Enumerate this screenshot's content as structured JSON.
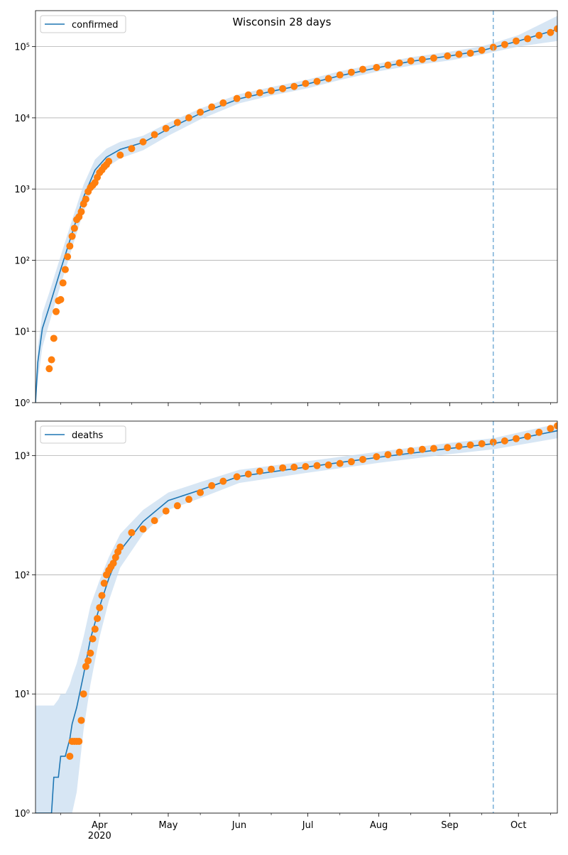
{
  "chart_data": [
    {
      "type": "line",
      "title": "Wisconsin 28 days",
      "log_y": true,
      "grid": "y",
      "legend": "upper left",
      "xlim": [
        "2020-03-04",
        "2020-10-18"
      ],
      "ylim": [
        1,
        320000
      ],
      "xticks": [
        "2020-04-01",
        "2020-05-01",
        "2020-06-01",
        "2020-07-01",
        "2020-08-01",
        "2020-09-01",
        "2020-10-01"
      ],
      "xminorticks": [
        "2020-03-15",
        "2020-04-15",
        "2020-05-15",
        "2020-06-15",
        "2020-07-15",
        "2020-08-15",
        "2020-09-15",
        "2020-10-15"
      ],
      "yticks": [
        {
          "value": 1,
          "label": "10⁰"
        },
        {
          "value": 10,
          "label": "10¹"
        },
        {
          "value": 100,
          "label": "10²"
        },
        {
          "value": 1000,
          "label": "10³"
        },
        {
          "value": 10000,
          "label": "10⁴"
        },
        {
          "value": 100000,
          "label": "10⁵"
        }
      ],
      "vline": "2020-09-20",
      "vline_color": "#7fb3d9",
      "series": [
        {
          "name": "confirmed",
          "color": "#1f77b4",
          "band_color": "#c6dbef",
          "x": [
            "2020-03-04",
            "2020-03-05",
            "2020-03-07",
            "2020-03-10",
            "2020-03-15",
            "2020-03-20",
            "2020-03-25",
            "2020-03-30",
            "2020-04-04",
            "2020-04-10",
            "2020-04-20",
            "2020-05-01",
            "2020-05-15",
            "2020-06-01",
            "2020-06-15",
            "2020-07-01",
            "2020-07-15",
            "2020-08-01",
            "2020-08-15",
            "2020-09-01",
            "2020-09-15",
            "2020-09-20",
            "2020-10-01",
            "2020-10-18"
          ],
          "values": [
            1,
            3.7,
            11,
            22,
            74,
            240,
            770,
            1850,
            2800,
            3600,
            4500,
            7000,
            11500,
            18500,
            23500,
            30000,
            39000,
            51000,
            62000,
            74000,
            88000,
            97000,
            120000,
            175000
          ],
          "upper": [
            1.5,
            6,
            18,
            35,
            115,
            370,
            1150,
            2600,
            3700,
            4600,
            5600,
            8500,
            13500,
            21500,
            27000,
            34500,
            45000,
            58000,
            71000,
            85000,
            101000,
            112000,
            145000,
            270000
          ],
          "lower": [
            1,
            2,
            6,
            13,
            45,
            150,
            480,
            1250,
            2000,
            2700,
            3500,
            5600,
            9500,
            16000,
            20500,
            26000,
            34000,
            45000,
            54000,
            64000,
            77000,
            84000,
            100000,
            120000
          ]
        },
        {
          "color": "#ff7f0e",
          "marker": "o",
          "x": [
            "2020-03-10",
            "2020-03-11",
            "2020-03-12",
            "2020-03-13",
            "2020-03-14",
            "2020-03-15",
            "2020-03-16",
            "2020-03-17",
            "2020-03-18",
            "2020-03-19",
            "2020-03-20",
            "2020-03-21",
            "2020-03-22",
            "2020-03-23",
            "2020-03-24",
            "2020-03-25",
            "2020-03-26",
            "2020-03-27",
            "2020-03-28",
            "2020-03-29",
            "2020-03-30",
            "2020-03-31",
            "2020-04-01",
            "2020-04-02",
            "2020-04-03",
            "2020-04-04",
            "2020-04-05",
            "2020-04-10",
            "2020-04-15",
            "2020-04-20",
            "2020-04-25",
            "2020-04-30",
            "2020-05-05",
            "2020-05-10",
            "2020-05-15",
            "2020-05-20",
            "2020-05-25",
            "2020-05-31",
            "2020-06-05",
            "2020-06-10",
            "2020-06-15",
            "2020-06-20",
            "2020-06-25",
            "2020-06-30",
            "2020-07-05",
            "2020-07-10",
            "2020-07-15",
            "2020-07-20",
            "2020-07-25",
            "2020-07-31",
            "2020-08-05",
            "2020-08-10",
            "2020-08-15",
            "2020-08-20",
            "2020-08-25",
            "2020-08-31",
            "2020-09-05",
            "2020-09-10",
            "2020-09-15",
            "2020-09-20",
            "2020-09-25",
            "2020-09-30",
            "2020-10-05",
            "2020-10-10",
            "2020-10-15",
            "2020-10-18"
          ],
          "values": [
            3,
            4,
            8,
            19,
            27,
            28,
            48,
            74,
            112,
            158,
            217,
            281,
            372,
            407,
            480,
            617,
            720,
            920,
            1050,
            1130,
            1230,
            1460,
            1700,
            1850,
            2050,
            2200,
            2450,
            3000,
            3700,
            4600,
            5800,
            7100,
            8600,
            10000,
            12000,
            14200,
            16200,
            18700,
            21000,
            22500,
            24000,
            25700,
            27600,
            30300,
            32500,
            35600,
            40000,
            43700,
            48000,
            51000,
            55000,
            59000,
            63000,
            66000,
            69000,
            74000,
            78000,
            81000,
            89000,
            98000,
            107000,
            120000,
            129000,
            144000,
            158000,
            178000
          ]
        }
      ]
    },
    {
      "type": "line",
      "log_y": true,
      "grid": "y",
      "legend": "upper left",
      "xlim": [
        "2020-03-04",
        "2020-10-18"
      ],
      "ylim": [
        1,
        1950
      ],
      "xticks": [
        {
          "value": "2020-04-01",
          "label": "Apr\n2020"
        },
        {
          "value": "2020-05-01",
          "label": "May"
        },
        {
          "value": "2020-06-01",
          "label": "Jun"
        },
        {
          "value": "2020-07-01",
          "label": "Jul"
        },
        {
          "value": "2020-08-01",
          "label": "Aug"
        },
        {
          "value": "2020-09-01",
          "label": "Sep"
        },
        {
          "value": "2020-10-01",
          "label": "Oct"
        }
      ],
      "xminorticks": [
        "2020-03-15",
        "2020-04-15",
        "2020-05-15",
        "2020-06-15",
        "2020-07-15",
        "2020-08-15",
        "2020-09-15",
        "2020-10-15"
      ],
      "yticks": [
        {
          "value": 1,
          "label": "10⁰"
        },
        {
          "value": 10,
          "label": "10¹"
        },
        {
          "value": 100,
          "label": "10²"
        },
        {
          "value": 1000,
          "label": "10³"
        }
      ],
      "vline": "2020-09-20",
      "vline_color": "#7fb3d9",
      "series": [
        {
          "name": "deaths",
          "color": "#1f77b4",
          "band_color": "#c6dbef",
          "x": [
            "2020-03-04",
            "2020-03-11",
            "2020-03-12",
            "2020-03-14",
            "2020-03-15",
            "2020-03-17",
            "2020-03-19",
            "2020-03-20",
            "2020-03-22",
            "2020-03-25",
            "2020-03-28",
            "2020-04-01",
            "2020-04-05",
            "2020-04-10",
            "2020-04-20",
            "2020-05-01",
            "2020-05-15",
            "2020-06-01",
            "2020-07-01",
            "2020-08-01",
            "2020-09-01",
            "2020-09-20",
            "2020-10-18"
          ],
          "values": [
            1,
            1,
            2,
            2,
            3,
            3,
            4.2,
            5.6,
            7.7,
            14.5,
            29,
            54,
            93,
            160,
            280,
            420,
            515,
            670,
            805,
            970,
            1150,
            1260,
            1620
          ],
          "upper": [
            8,
            8,
            8,
            9,
            10,
            10,
            12,
            14,
            18,
            30,
            55,
            90,
            140,
            220,
            350,
            490,
            600,
            760,
            900,
            1080,
            1280,
            1400,
            1850
          ],
          "lower": [
            1,
            1,
            1,
            1,
            1,
            1,
            1,
            1,
            1.5,
            5,
            12,
            30,
            60,
            115,
            220,
            350,
            440,
            590,
            720,
            870,
            1030,
            1130,
            1400
          ]
        },
        {
          "color": "#ff7f0e",
          "marker": "o",
          "x": [
            "2020-03-19",
            "2020-03-20",
            "2020-03-21",
            "2020-03-22",
            "2020-03-23",
            "2020-03-24",
            "2020-03-25",
            "2020-03-26",
            "2020-03-27",
            "2020-03-28",
            "2020-03-29",
            "2020-03-30",
            "2020-03-31",
            "2020-04-01",
            "2020-04-02",
            "2020-04-03",
            "2020-04-04",
            "2020-04-05",
            "2020-04-06",
            "2020-04-07",
            "2020-04-08",
            "2020-04-09",
            "2020-04-10",
            "2020-04-15",
            "2020-04-20",
            "2020-04-25",
            "2020-04-30",
            "2020-05-05",
            "2020-05-10",
            "2020-05-15",
            "2020-05-20",
            "2020-05-25",
            "2020-05-31",
            "2020-06-05",
            "2020-06-10",
            "2020-06-15",
            "2020-06-20",
            "2020-06-25",
            "2020-06-30",
            "2020-07-05",
            "2020-07-10",
            "2020-07-15",
            "2020-07-20",
            "2020-07-25",
            "2020-07-31",
            "2020-08-05",
            "2020-08-10",
            "2020-08-15",
            "2020-08-20",
            "2020-08-25",
            "2020-08-31",
            "2020-09-05",
            "2020-09-10",
            "2020-09-15",
            "2020-09-20",
            "2020-09-25",
            "2020-09-30",
            "2020-10-05",
            "2020-10-10",
            "2020-10-15",
            "2020-10-18"
          ],
          "values": [
            3,
            4,
            4,
            4,
            4,
            6,
            10,
            17,
            19,
            22,
            29,
            35,
            43,
            53,
            67,
            85,
            100,
            109,
            117,
            125,
            140,
            156,
            171,
            226,
            242,
            285,
            343,
            380,
            430,
            490,
            560,
            610,
            665,
            700,
            740,
            770,
            790,
            800,
            810,
            825,
            835,
            860,
            890,
            930,
            980,
            1020,
            1070,
            1100,
            1130,
            1150,
            1170,
            1200,
            1230,
            1260,
            1300,
            1330,
            1390,
            1450,
            1570,
            1690,
            1780
          ]
        }
      ]
    }
  ]
}
